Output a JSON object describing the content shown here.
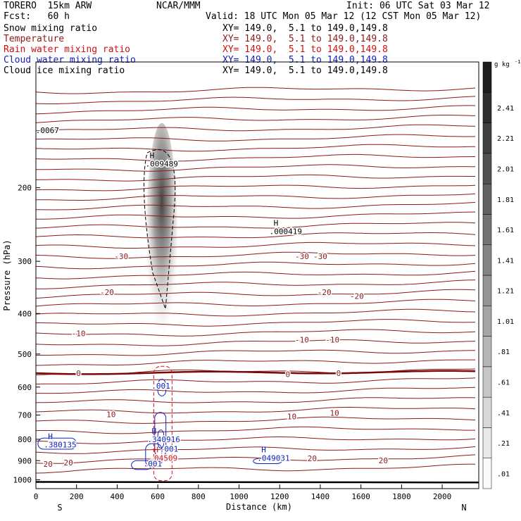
{
  "header": {
    "model": "TORERO  15km ARW",
    "center": "NCAR/MMM",
    "init": "Init: 06 UTC Sat 03 Mar 12",
    "fcst": "Fcst:   60 h",
    "valid": "Valid: 18 UTC Mon 05 Mar 12 (12 CST Mon 05 Mar 12)",
    "fields": [
      {
        "name": "Snow mixing ratio",
        "xy": "XY= 149.0,  5.1 to 149.0,149.8",
        "color": "#000000"
      },
      {
        "name": "Temperature",
        "xy": "XY= 149.0,  5.1 to 149.0,149.8",
        "color": "#8b1a1a"
      },
      {
        "name": "Rain water mixing ratio",
        "xy": "XY= 149.0,  5.1 to 149.0,149.8",
        "color": "#d01010"
      },
      {
        "name": "Cloud water mixing ratio",
        "xy": "XY= 149.0,  5.1 to 149.0,149.8",
        "color": "#1020c0"
      },
      {
        "name": "Cloud ice mixing ratio",
        "xy": "XY= 149.0,  5.1 to 149.0,149.8",
        "color": "#000000"
      }
    ]
  },
  "chart_data": {
    "type": "contour cross-section",
    "xlabel": "Distance (km)",
    "ylabel": "Pressure (hPa)",
    "xlim": [
      0,
      2180
    ],
    "ylim": [
      1050,
      100
    ],
    "y_scale": "log",
    "x_ticks": [
      0,
      200,
      400,
      600,
      800,
      1000,
      1200,
      1400,
      1600,
      1800,
      2000
    ],
    "y_ticks": [
      200,
      300,
      400,
      500,
      600,
      700,
      800,
      900,
      1000
    ],
    "left_end_label": "S",
    "right_end_label": "N",
    "colorbar": {
      "unit": "g kg",
      "unit_exp": "-1",
      "levels": [
        ".01",
        ".21",
        ".41",
        ".61",
        ".81",
        "1.01",
        "1.21",
        "1.41",
        "1.61",
        "1.81",
        "2.01",
        "2.21",
        "2.41"
      ]
    },
    "snow_max": {
      "x": 620,
      "p": 230,
      "value_g_kg": 2.4
    },
    "temperature_labels": [
      {
        "x": 420,
        "p": 292,
        "text": "-30"
      },
      {
        "x": 1310,
        "p": 292,
        "text": "-30"
      },
      {
        "x": 1400,
        "p": 292,
        "text": "-30"
      },
      {
        "x": 350,
        "p": 356,
        "text": "-20"
      },
      {
        "x": 1420,
        "p": 356,
        "text": "-20"
      },
      {
        "x": 1580,
        "p": 363,
        "text": "-20"
      },
      {
        "x": 210,
        "p": 446,
        "text": "-10"
      },
      {
        "x": 1310,
        "p": 462,
        "text": "-10"
      },
      {
        "x": 1460,
        "p": 462,
        "text": "-10"
      },
      {
        "x": 210,
        "p": 556,
        "text": "0"
      },
      {
        "x": 1240,
        "p": 559,
        "text": "0"
      },
      {
        "x": 1490,
        "p": 556,
        "text": "0"
      },
      {
        "x": 370,
        "p": 697,
        "text": "10"
      },
      {
        "x": 1260,
        "p": 705,
        "text": "10"
      },
      {
        "x": 1470,
        "p": 692,
        "text": "10"
      },
      {
        "x": 60,
        "p": 916,
        "text": "20"
      },
      {
        "x": 160,
        "p": 910,
        "text": "20"
      },
      {
        "x": 1360,
        "p": 889,
        "text": "20"
      },
      {
        "x": 1710,
        "p": 899,
        "text": "20"
      }
    ],
    "annotations": [
      {
        "x": 560,
        "p": 178,
        "H": "H",
        "text": ".009489",
        "color": "#000000"
      },
      {
        "x": 1170,
        "p": 258,
        "H": "H",
        "text": ".000419",
        "color": "#000000"
      },
      {
        "x": 590,
        "p": 605,
        "H": "",
        "text": ".001",
        "color": "#1020c0"
      },
      {
        "x": 570,
        "p": 812,
        "H": "H",
        "text": ".340916",
        "color": "#1020c0"
      },
      {
        "x": 630,
        "p": 856,
        "H": "",
        "text": ".001",
        "color": "#1020c0"
      },
      {
        "x": 580,
        "p": 900,
        "H": "H",
        "text": ".04509",
        "color": "#d01010"
      },
      {
        "x": 550,
        "p": 929,
        "H": "",
        "text": ".001",
        "color": "#1020c0"
      },
      {
        "x": 1110,
        "p": 900,
        "H": "H",
        "text": ".049031",
        "color": "#1020c0"
      },
      {
        "x": 60,
        "p": 836,
        "H": "H",
        "text": ".380135",
        "color": "#1020c0"
      },
      {
        "x": 20,
        "p": 148,
        "H": "",
        "text": ".0067",
        "color": "#000000"
      }
    ]
  }
}
